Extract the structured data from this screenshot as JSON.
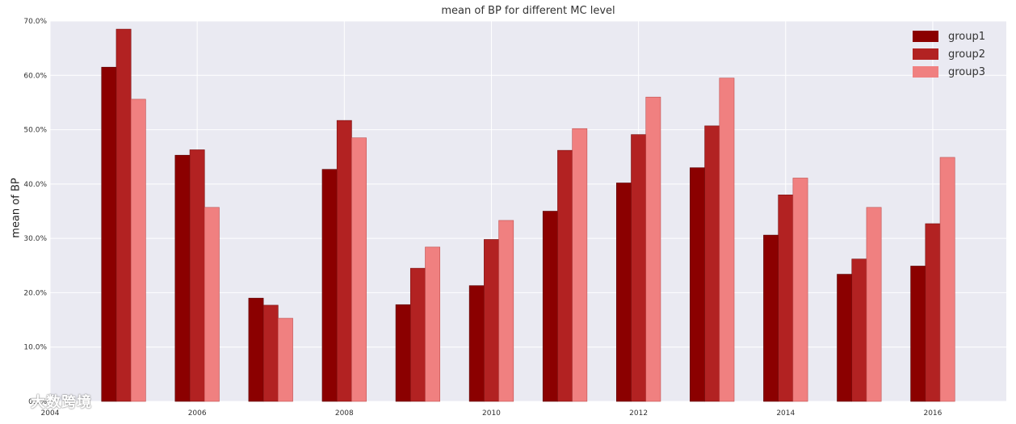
{
  "colors": {
    "plot_background": "#eaeaf2",
    "grid": "#ffffff",
    "group1": "#8b0000",
    "group2": "#b22222",
    "group3": "#f08080"
  },
  "watermark": "大数跨境",
  "chart_data": {
    "type": "bar",
    "title": "mean of BP for different MC level",
    "xlabel": "",
    "ylabel": "mean of BP",
    "categories": [
      "2005",
      "2006",
      "2007",
      "2008",
      "2009",
      "2010",
      "2011",
      "2012",
      "2013",
      "2014",
      "2015",
      "2016"
    ],
    "series": [
      {
        "name": "group1",
        "values": [
          61.5,
          45.3,
          19.0,
          42.7,
          17.8,
          21.3,
          35.0,
          40.2,
          43.0,
          30.6,
          23.4,
          24.9
        ]
      },
      {
        "name": "group2",
        "values": [
          68.5,
          46.3,
          17.7,
          51.7,
          24.5,
          29.8,
          46.2,
          49.1,
          50.7,
          38.0,
          26.2,
          32.7
        ]
      },
      {
        "name": "group3",
        "values": [
          55.6,
          35.7,
          15.3,
          48.5,
          28.4,
          33.3,
          50.2,
          56.0,
          59.5,
          41.1,
          35.7,
          44.9
        ]
      }
    ],
    "x_ticks": [
      "2004",
      "2006",
      "2008",
      "2010",
      "2012",
      "2014",
      "2016"
    ],
    "y_ticks": [
      "0.0%",
      "10.0%",
      "20.0%",
      "30.0%",
      "40.0%",
      "50.0%",
      "60.0%",
      "70.0%"
    ],
    "xlim": [
      2004,
      2017
    ],
    "ylim": [
      0,
      70
    ],
    "grid": true,
    "legend_position": "top-right"
  }
}
